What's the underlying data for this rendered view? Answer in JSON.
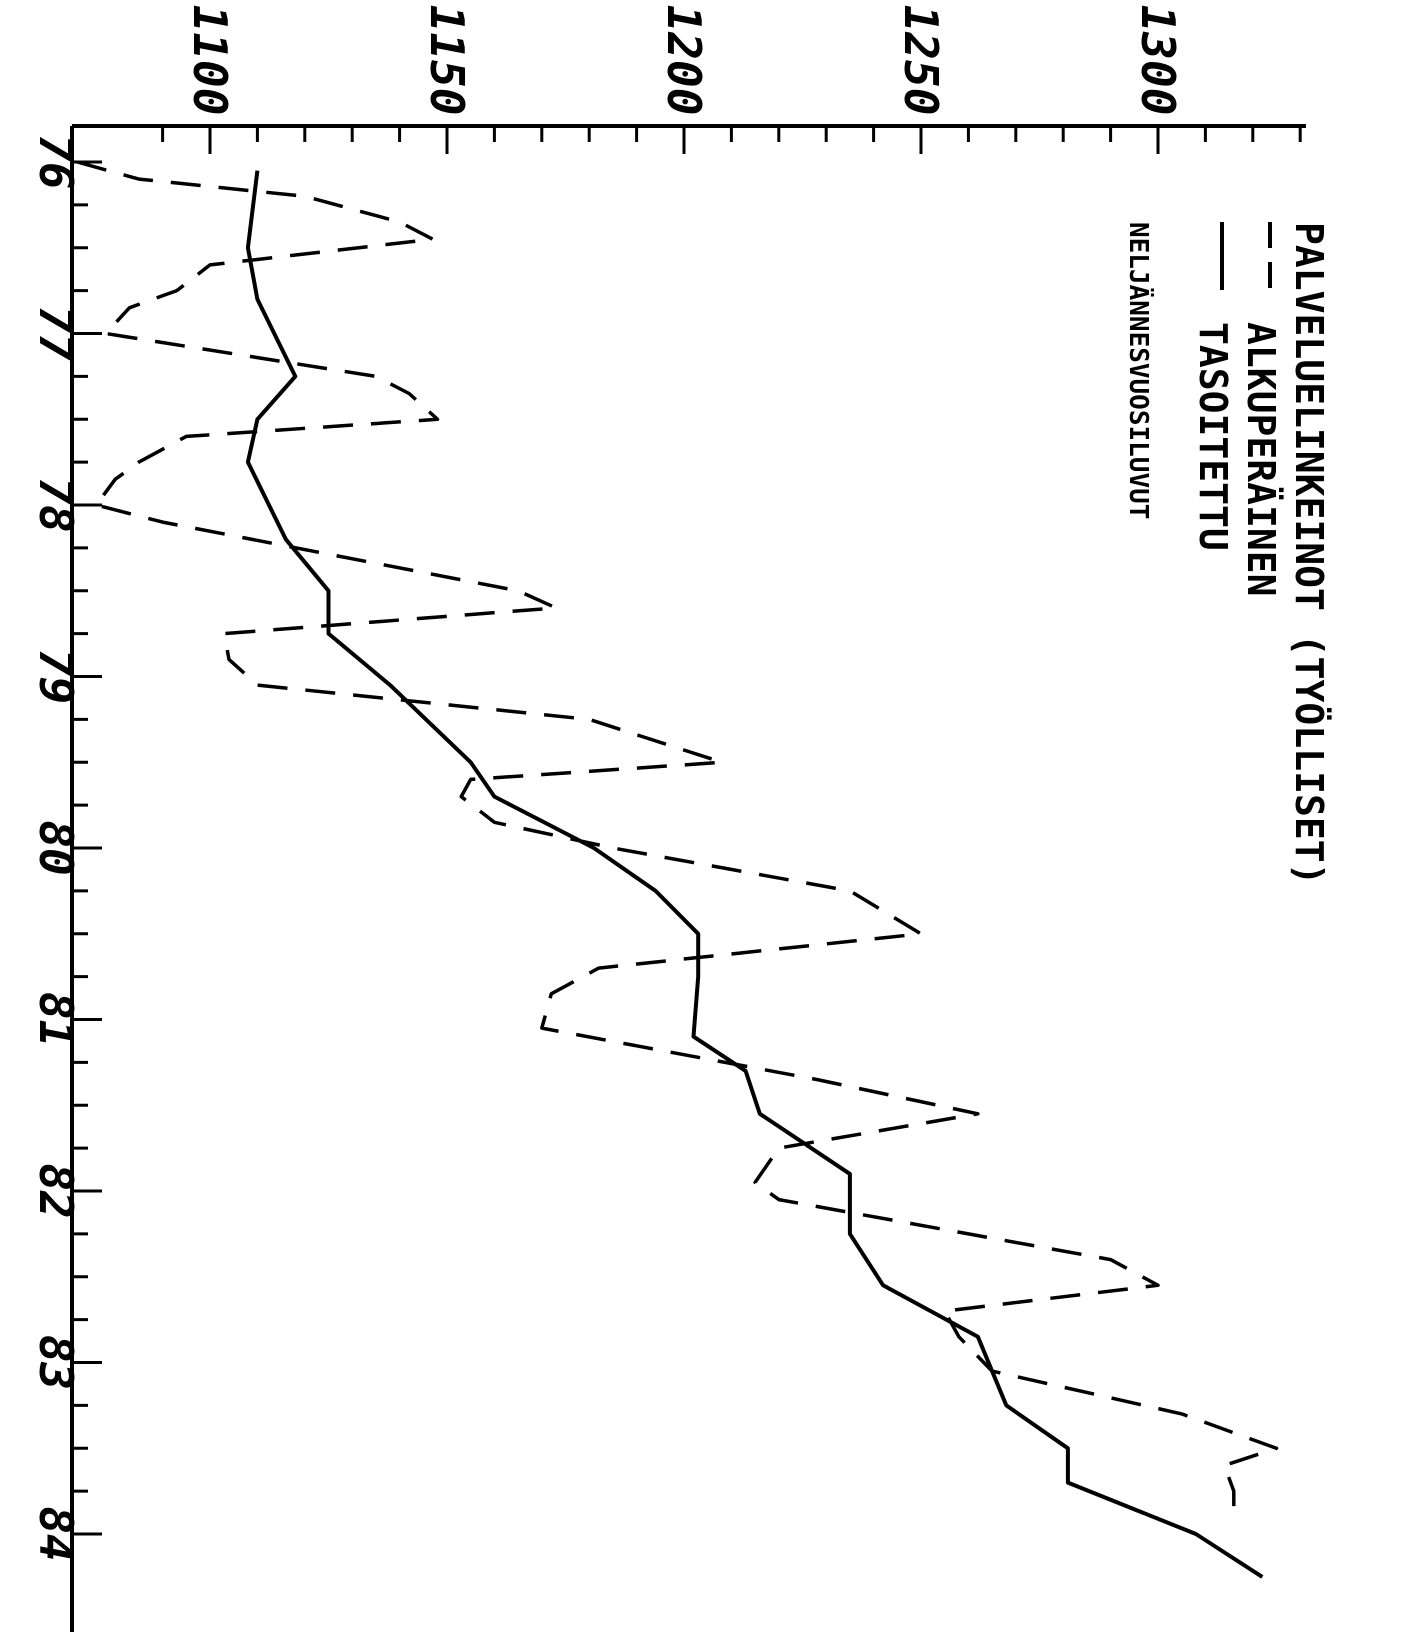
{
  "chart_data": {
    "type": "line",
    "title": "PALVELUELINKEINOT  (TYÖLLISET)",
    "note": "NELJÄNNESVUOSILUVUT",
    "legend": [
      {
        "label": "ALKUPERÄINEN",
        "style": "dashed"
      },
      {
        "label": "TASOITETTU",
        "style": "solid"
      }
    ],
    "legend_placement": "top-right (rotated)",
    "orientation": "rotated-90-clockwise",
    "x_tick_labels": [
      "76",
      "77",
      "78",
      "79",
      "80",
      "81",
      "82",
      "83",
      "84"
    ],
    "x_range": [
      76,
      84
    ],
    "y_tick_labels": [
      "1100",
      "1150",
      "1200",
      "1250",
      "1300"
    ],
    "y_range": [
      1070,
      1330
    ],
    "grid": false,
    "series": [
      {
        "name": "ALKUPERÄINEN",
        "style": "dashed",
        "points": [
          [
            76.0,
            1072
          ],
          [
            76.1,
            1085
          ],
          [
            76.2,
            1120
          ],
          [
            76.35,
            1140
          ],
          [
            76.45,
            1147
          ],
          [
            76.6,
            1100
          ],
          [
            76.75,
            1093
          ],
          [
            76.85,
            1083
          ],
          [
            77.0,
            1078
          ],
          [
            77.25,
            1135
          ],
          [
            77.35,
            1142
          ],
          [
            77.5,
            1148
          ],
          [
            77.6,
            1095
          ],
          [
            77.75,
            1085
          ],
          [
            77.85,
            1080
          ],
          [
            78.0,
            1076
          ],
          [
            78.1,
            1090
          ],
          [
            78.5,
            1165
          ],
          [
            78.6,
            1173
          ],
          [
            78.75,
            1103
          ],
          [
            78.9,
            1104
          ],
          [
            79.05,
            1110
          ],
          [
            79.25,
            1180
          ],
          [
            79.5,
            1208
          ],
          [
            79.6,
            1155
          ],
          [
            79.7,
            1153
          ],
          [
            79.85,
            1160
          ],
          [
            80.0,
            1185
          ],
          [
            80.25,
            1235
          ],
          [
            80.5,
            1250
          ],
          [
            80.7,
            1182
          ],
          [
            80.85,
            1172
          ],
          [
            81.05,
            1170
          ],
          [
            81.35,
            1228
          ],
          [
            81.55,
            1262
          ],
          [
            81.75,
            1220
          ],
          [
            81.95,
            1215
          ],
          [
            82.05,
            1220
          ],
          [
            82.4,
            1290
          ],
          [
            82.55,
            1300
          ],
          [
            82.7,
            1255
          ],
          [
            82.85,
            1258
          ],
          [
            83.05,
            1265
          ],
          [
            83.3,
            1305
          ],
          [
            83.5,
            1325
          ],
          [
            83.6,
            1314
          ],
          [
            83.75,
            1316
          ],
          [
            83.9,
            1316
          ]
        ]
      },
      {
        "name": "TASOITETTU",
        "style": "solid",
        "points": [
          [
            76.05,
            1110
          ],
          [
            76.5,
            1108
          ],
          [
            76.8,
            1110
          ],
          [
            77.25,
            1118
          ],
          [
            77.5,
            1110
          ],
          [
            77.75,
            1108
          ],
          [
            78.2,
            1116
          ],
          [
            78.5,
            1125
          ],
          [
            78.75,
            1125
          ],
          [
            79.05,
            1138
          ],
          [
            79.5,
            1155
          ],
          [
            79.7,
            1160
          ],
          [
            80.0,
            1181
          ],
          [
            80.25,
            1194
          ],
          [
            80.5,
            1203
          ],
          [
            80.75,
            1203
          ],
          [
            81.1,
            1202
          ],
          [
            81.3,
            1213
          ],
          [
            81.55,
            1216
          ],
          [
            81.9,
            1235
          ],
          [
            82.25,
            1235
          ],
          [
            82.55,
            1242
          ],
          [
            82.85,
            1262
          ],
          [
            83.25,
            1268
          ],
          [
            83.5,
            1281
          ],
          [
            83.7,
            1281
          ],
          [
            84.0,
            1308
          ],
          [
            84.25,
            1322
          ]
        ]
      }
    ]
  }
}
